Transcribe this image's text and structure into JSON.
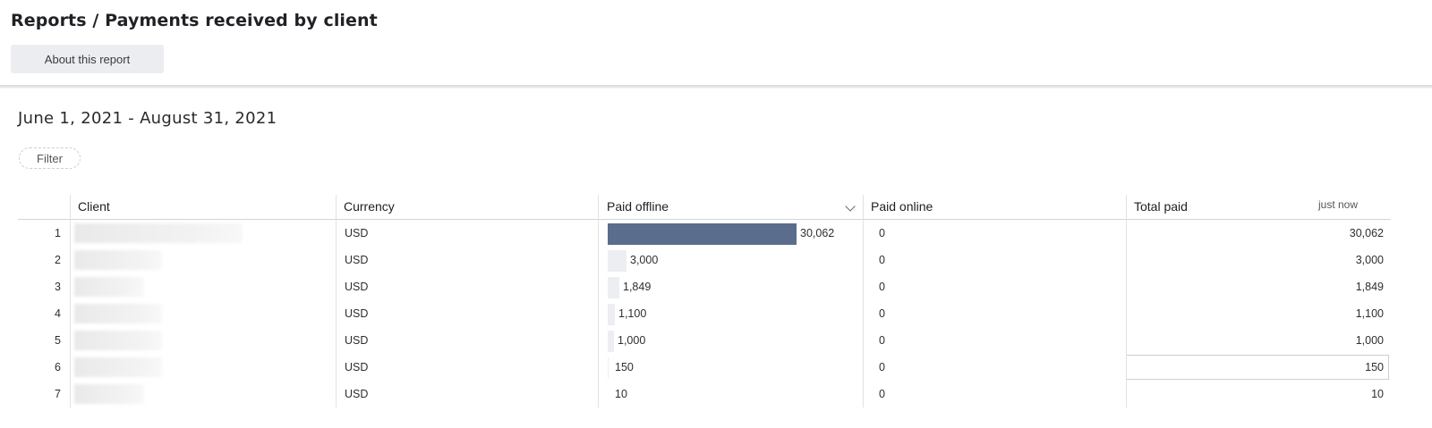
{
  "header": {
    "title": "Reports / Payments received by client",
    "about_label": "About this report"
  },
  "report": {
    "date_range": "June 1, 2021 - August 31, 2021",
    "filter_label": "Filter",
    "refresh_status": "just now"
  },
  "colors": {
    "accent_bar": "#5a6d8c",
    "light_bar": "#edeef2"
  },
  "table": {
    "columns": [
      "Client",
      "Currency",
      "Paid offline",
      "Paid online",
      "Total paid"
    ],
    "sort_icon": "chevron-down-icon",
    "max_offline": 30062,
    "rows": [
      {
        "num": "1",
        "currency": "USD",
        "offline": 30062,
        "offline_label": "30,062",
        "online": "0",
        "total": "30,062"
      },
      {
        "num": "2",
        "currency": "USD",
        "offline": 3000,
        "offline_label": "3,000",
        "online": "0",
        "total": "3,000"
      },
      {
        "num": "3",
        "currency": "USD",
        "offline": 1849,
        "offline_label": "1,849",
        "online": "0",
        "total": "1,849"
      },
      {
        "num": "4",
        "currency": "USD",
        "offline": 1100,
        "offline_label": "1,100",
        "online": "0",
        "total": "1,100"
      },
      {
        "num": "5",
        "currency": "USD",
        "offline": 1000,
        "offline_label": "1,000",
        "online": "0",
        "total": "1,000"
      },
      {
        "num": "6",
        "currency": "USD",
        "offline": 150,
        "offline_label": "150",
        "online": "0",
        "total": "150",
        "selected": true
      },
      {
        "num": "7",
        "currency": "USD",
        "offline": 10,
        "offline_label": "10",
        "online": "0",
        "total": "10"
      }
    ]
  }
}
